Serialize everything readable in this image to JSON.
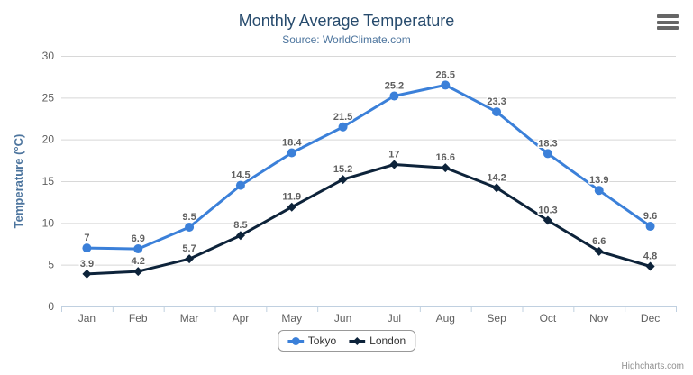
{
  "chart_data": {
    "type": "line",
    "title": "Monthly Average Temperature",
    "subtitle": "Source: WorldClimate.com",
    "xlabel": "",
    "ylabel": "Temperature (°C)",
    "categories": [
      "Jan",
      "Feb",
      "Mar",
      "Apr",
      "May",
      "Jun",
      "Jul",
      "Aug",
      "Sep",
      "Oct",
      "Nov",
      "Dec"
    ],
    "ylim": [
      0,
      30
    ],
    "ytick_step": 5,
    "grid": true,
    "data_labels": true,
    "legend_position": "bottom",
    "series": [
      {
        "name": "Tokyo",
        "color": "#3b80d9",
        "marker": "circle",
        "values": [
          7,
          6.9,
          9.5,
          14.5,
          18.4,
          21.5,
          25.2,
          26.5,
          23.3,
          18.3,
          13.9,
          9.6
        ]
      },
      {
        "name": "London",
        "color": "#0d233a",
        "marker": "diamond",
        "values": [
          3.9,
          4.2,
          5.7,
          8.5,
          11.9,
          15.2,
          17,
          16.6,
          14.2,
          10.3,
          6.6,
          4.8
        ]
      }
    ]
  },
  "colors": {
    "title": "#274b6d",
    "subtitle": "#4d759e",
    "axis_title": "#4d759e",
    "axis_labels": "#606060",
    "data_labels": "#606060",
    "grid_line": "#d8d8d8",
    "axis_line": "#c0d0e0",
    "legend_border": "#999999",
    "legend_text": "#333333",
    "credits_text": "#909090",
    "menu_icon": "#666666",
    "background": "#ffffff"
  },
  "icons": {
    "context_menu": "hamburger-icon"
  },
  "credits": "Highcharts.com"
}
